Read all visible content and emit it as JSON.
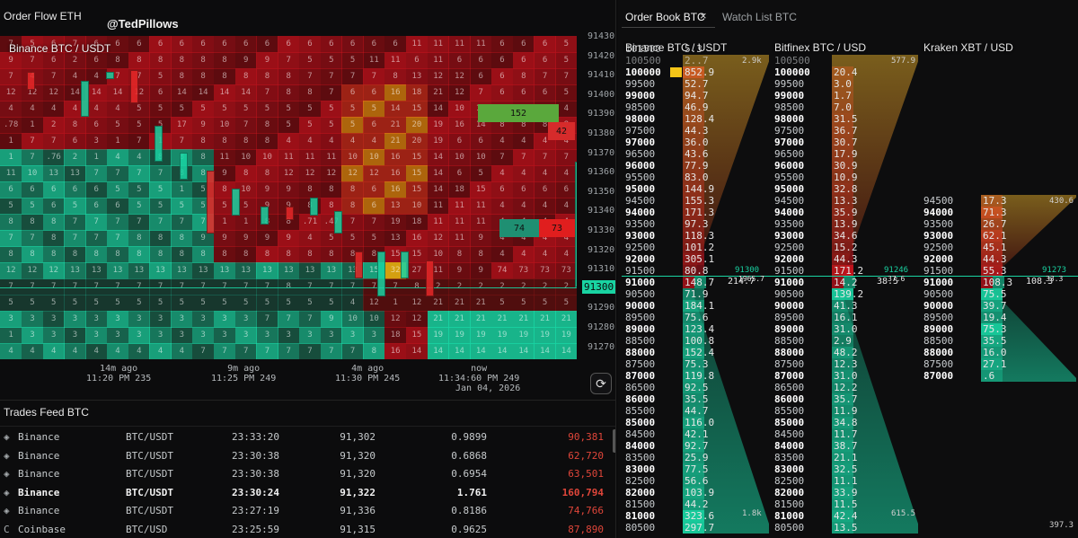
{
  "order_flow": {
    "title": "Order Flow ETH",
    "watermark": "@TedPillows",
    "pair_label": "Binance BTC / USDT",
    "price_axis": [
      "91430",
      "91420",
      "91410",
      "91400",
      "91390",
      "91380",
      "91370",
      "91360",
      "91350",
      "91340",
      "91330",
      "91320",
      "91310",
      "91300",
      "91290",
      "91280",
      "91270"
    ],
    "current_price": "91300",
    "time_labels": [
      {
        "rel": "14m ago",
        "abs": "11:20 PM 235"
      },
      {
        "rel": "9m ago",
        "abs": "11:25 PM 249"
      },
      {
        "rel": "4m ago",
        "abs": "11:30 PM 245"
      },
      {
        "rel": "now",
        "abs": "11:34:60 PM 249",
        "date": "Jan 04, 2026"
      }
    ],
    "heat_rows": [
      [
        "7",
        "5",
        "6",
        "7",
        "6",
        "6",
        "6",
        "6",
        "6",
        "6",
        "6",
        "6",
        "6",
        "6",
        "6",
        "6",
        "6",
        "6",
        "6",
        "11",
        "11",
        "11",
        "11",
        "6",
        "6",
        "6",
        "5"
      ],
      [
        "9",
        "7",
        "6",
        "2",
        "6",
        "8",
        "8",
        "8",
        "8",
        "8",
        "8",
        "9",
        "9",
        "7",
        "5",
        "5",
        "5",
        "11",
        "11",
        "6",
        "11",
        "6",
        "6",
        "6",
        "6",
        "6",
        "5"
      ],
      [
        "7",
        "4",
        "7",
        "4",
        "4",
        "7",
        "7",
        "5",
        "8",
        "8",
        "8",
        "8",
        "8",
        "8",
        "7",
        "7",
        "7",
        "7",
        "8",
        "13",
        "12",
        "12",
        "6",
        "6",
        "8",
        "7",
        "7"
      ],
      [
        "12",
        "12",
        "12",
        "14",
        "14",
        "14",
        "12",
        "6",
        "14",
        "14",
        "14",
        "14",
        "7",
        "8",
        "8",
        "7",
        "6",
        "6",
        "16",
        "18",
        "21",
        "12",
        "7",
        "6",
        "6",
        "6",
        "5"
      ],
      [
        "4",
        "4",
        "4",
        "4",
        "4",
        "4",
        "5",
        "5",
        "5",
        "5",
        "5",
        "5",
        "5",
        "5",
        "5",
        "5",
        "5",
        "5",
        "14",
        "15",
        "14",
        "10",
        "15",
        "4",
        "4",
        "4",
        "4"
      ],
      [
        ".78",
        "1",
        "2",
        "8",
        "6",
        "5",
        "5",
        "5",
        "17",
        "9",
        "10",
        "7",
        "8",
        "5",
        "5",
        "5",
        "5",
        "6",
        "21",
        "20",
        "19",
        "16",
        "14",
        "8",
        "8",
        "8",
        "8"
      ],
      [
        "1",
        "7",
        "7",
        "6",
        "3",
        "1",
        "7",
        "1",
        "7",
        "8",
        "8",
        "8",
        "8",
        "4",
        "4",
        "4",
        "4",
        "4",
        "21",
        "20",
        "19",
        "6",
        "6",
        "4",
        "4",
        "4",
        "4"
      ],
      [
        "1",
        "7",
        ".76",
        "2",
        "1",
        "4",
        "4",
        "8",
        "8",
        "8",
        "11",
        "10",
        "10",
        "11",
        "11",
        "11",
        "10",
        "10",
        "16",
        "15",
        "14",
        "10",
        "10",
        "7",
        "7",
        "7",
        "7"
      ],
      [
        "11",
        "10",
        "13",
        "13",
        "7",
        "7",
        "7",
        "7",
        "8",
        "8",
        "9",
        "8",
        "8",
        "12",
        "12",
        "12",
        "12",
        "12",
        "16",
        "15",
        "14",
        "6",
        "5",
        "4",
        "4",
        "4",
        "4"
      ],
      [
        "6",
        "6",
        "6",
        "6",
        "6",
        "5",
        "5",
        "5",
        "1",
        "5",
        "8",
        "10",
        "9",
        "9",
        "8",
        "8",
        "8",
        "6",
        "16",
        "15",
        "14",
        "18",
        "15",
        "6",
        "6",
        "6",
        "6"
      ],
      [
        "5",
        "5",
        "6",
        "5",
        "6",
        "6",
        "5",
        "5",
        "5",
        "5",
        "5",
        "5",
        "9",
        "9",
        "8",
        "8",
        "8",
        "6",
        "13",
        "10",
        "11",
        "11",
        "11",
        "4",
        "4",
        "4",
        "4"
      ],
      [
        "8",
        "8",
        "8",
        "7",
        "7",
        "7",
        "7",
        "7",
        "7",
        "7",
        "1",
        "1",
        "8",
        "8",
        ".71",
        ".47",
        "7",
        "7",
        "19",
        "18",
        "11",
        "11",
        "11",
        "4",
        "4",
        "4",
        "4"
      ],
      [
        "7",
        "7",
        "8",
        "7",
        "7",
        "7",
        "8",
        "8",
        "8",
        "9",
        "9",
        "9",
        "9",
        "9",
        "4",
        "5",
        "5",
        "5",
        "13",
        "16",
        "12",
        "11",
        "9",
        "4",
        "4",
        "4",
        "4"
      ],
      [
        "8",
        "8",
        "8",
        "8",
        "8",
        "8",
        "8",
        "8",
        "8",
        "8",
        "8",
        "8",
        "8",
        "8",
        "8",
        "8",
        "8",
        "8",
        "15",
        "15",
        "10",
        "8",
        "8",
        "4",
        "4",
        "4",
        "4"
      ],
      [
        "12",
        "12",
        "12",
        "13",
        "13",
        "13",
        "13",
        "13",
        "13",
        "13",
        "13",
        "13",
        "13",
        "13",
        "13",
        "13",
        "13",
        "15",
        "32",
        "27",
        "11",
        "9",
        "9",
        "74",
        "73",
        "73",
        "73"
      ],
      [
        "7",
        "7",
        "7",
        "7",
        "7",
        "7",
        "7",
        "7",
        "7",
        "7",
        "7",
        "7",
        "7",
        "8",
        "7",
        "7",
        "7",
        "7",
        "7",
        "8",
        "2",
        "2",
        "2",
        "2",
        "2",
        "2",
        "2"
      ],
      [
        "5",
        "5",
        "5",
        "5",
        "5",
        "5",
        "5",
        "5",
        "5",
        "5",
        "5",
        "5",
        "5",
        "5",
        "5",
        "5",
        "4",
        "12",
        "1",
        "12",
        "21",
        "21",
        "21",
        "5",
        "5",
        "5",
        "5"
      ],
      [
        "3",
        "3",
        "3",
        "3",
        "3",
        "3",
        "3",
        "3",
        "3",
        "3",
        "3",
        "3",
        "7",
        "7",
        "7",
        "9",
        "10",
        "10",
        "12",
        "12",
        "21",
        "21",
        "21",
        "21",
        "21",
        "21",
        "21"
      ],
      [
        "1",
        "3",
        "3",
        "3",
        "3",
        "3",
        "3",
        "3",
        "3",
        "3",
        "3",
        "3",
        "3",
        "3",
        "3",
        "3",
        "3",
        "3",
        "18",
        "15",
        "19",
        "19",
        "19",
        "19",
        "19",
        "19",
        "19"
      ],
      [
        "4",
        "4",
        "4",
        "4",
        "4",
        "4",
        "4",
        "4",
        "4",
        "7",
        "7",
        "7",
        "7",
        "7",
        "7",
        "7",
        "7",
        "8",
        "16",
        "14",
        "14",
        "14",
        "14",
        "14",
        "14",
        "14",
        "14"
      ]
    ],
    "big_bids": [
      {
        "label": "152"
      },
      {
        "label": "74"
      },
      {
        "label": "42"
      },
      {
        "label": "73"
      }
    ]
  },
  "trades_feed": {
    "title": "Trades Feed BTC",
    "rows": [
      {
        "exchange": "Binance",
        "pair": "BTC/USDT",
        "time": "23:33:20",
        "price": "91,302",
        "size": "0.9899",
        "value": "90,381",
        "bold": false
      },
      {
        "exchange": "Binance",
        "pair": "BTC/USDT",
        "time": "23:30:38",
        "price": "91,320",
        "size": "0.6868",
        "value": "62,720",
        "bold": false
      },
      {
        "exchange": "Binance",
        "pair": "BTC/USDT",
        "time": "23:30:38",
        "price": "91,320",
        "size": "0.6954",
        "value": "63,501",
        "bold": false
      },
      {
        "exchange": "Binance",
        "pair": "BTC/USDT",
        "time": "23:30:24",
        "price": "91,322",
        "size": "1.761",
        "value": "160,794",
        "bold": true
      },
      {
        "exchange": "Binance",
        "pair": "BTC/USDT",
        "time": "23:27:19",
        "price": "91,336",
        "size": "0.8186",
        "value": "74,766",
        "bold": false
      },
      {
        "exchange": "Coinbase",
        "pair": "BTC/USD",
        "time": "23:25:59",
        "price": "91,315",
        "size": "0.9625",
        "value": "87,890",
        "bold": false
      }
    ]
  },
  "order_book": {
    "tab_active": "Order Book BTC",
    "tab_close": "×",
    "tab_other": "Watch List BTC",
    "books": [
      {
        "title": "Binance BTC / USDT",
        "top_row": {
          "price": "101500",
          "qty": "5.3"
        },
        "top_total": "2.9k",
        "asks": [
          [
            "100000",
            "852.9"
          ],
          [
            "99500",
            "52.7"
          ],
          [
            "99000",
            "94.7"
          ],
          [
            "98500",
            "46.9"
          ],
          [
            "98000",
            "128.4"
          ],
          [
            "97500",
            "44.3"
          ],
          [
            "97000",
            "36.0"
          ],
          [
            "96500",
            "43.6"
          ],
          [
            "96000",
            "77.9"
          ],
          [
            "95500",
            "83.0"
          ],
          [
            "95000",
            "144.9"
          ],
          [
            "94500",
            "155.3"
          ],
          [
            "94000",
            "171.3"
          ],
          [
            "93500",
            "97.3"
          ],
          [
            "93000",
            "118.3"
          ],
          [
            "92500",
            "101.2"
          ],
          [
            "92000",
            "305.1"
          ],
          [
            "91500",
            "80.8"
          ]
        ],
        "partial_top": [
          "100500",
          "2..7"
        ],
        "mid": {
          "row_price": "91000",
          "row_qty": "148.7",
          "spread": "214.7",
          "spread2": "1965.7",
          "line_price": "91300"
        },
        "bids": [
          [
            "90500",
            "71.9"
          ],
          [
            "90000",
            "184.1"
          ],
          [
            "89500",
            "75.6"
          ],
          [
            "89000",
            "123.4"
          ],
          [
            "88500",
            "100.8"
          ],
          [
            "88000",
            "152.4"
          ],
          [
            "87500",
            "75.3"
          ],
          [
            "87000",
            "119.8"
          ],
          [
            "86500",
            "92.5"
          ],
          [
            "86000",
            "35.5"
          ],
          [
            "85500",
            "44.7"
          ],
          [
            "85000",
            "116.0"
          ],
          [
            "84500",
            "42.1"
          ],
          [
            "84000",
            "92.7"
          ],
          [
            "83500",
            "25.9"
          ],
          [
            "83000",
            "77.5"
          ],
          [
            "82500",
            "56.6"
          ],
          [
            "82000",
            "103.9"
          ],
          [
            "81500",
            "44.2"
          ],
          [
            "81000",
            "323.6"
          ],
          [
            "80500",
            "297.7"
          ]
        ],
        "bottom_total": "1.8k"
      },
      {
        "title": "Bitfinex BTC / USD",
        "top_total": "577.9",
        "partial_top": [
          "100500",
          ""
        ],
        "asks": [
          [
            "100000",
            "20.4"
          ],
          [
            "99500",
            "3.0"
          ],
          [
            "99000",
            "1.7"
          ],
          [
            "98500",
            "7.0"
          ],
          [
            "98000",
            "31.5"
          ],
          [
            "97500",
            "36.7"
          ],
          [
            "97000",
            "30.7"
          ],
          [
            "96500",
            "17.9"
          ],
          [
            "96000",
            "30.9"
          ],
          [
            "95500",
            "10.9"
          ],
          [
            "95000",
            "32.8"
          ],
          [
            "94500",
            "13.3"
          ],
          [
            "94000",
            "35.9"
          ],
          [
            "93500",
            "13.9"
          ],
          [
            "93000",
            "34.6"
          ],
          [
            "92500",
            "15.2"
          ],
          [
            "92000",
            "44.3"
          ],
          [
            "91500",
            "171.2"
          ]
        ],
        "mid": {
          "row_price": "91000",
          "row_qty": "14.2",
          "spread": "38.5",
          "spread2": "37.6",
          "line_price": "91246"
        },
        "bids": [
          [
            "90500",
            "139.2"
          ],
          [
            "90000",
            "41.3"
          ],
          [
            "89500",
            "16.1"
          ],
          [
            "89000",
            "31.0"
          ],
          [
            "88500",
            "2.9"
          ],
          [
            "88000",
            "48.2"
          ],
          [
            "87500",
            "12.3"
          ],
          [
            "87000",
            "31.0"
          ],
          [
            "86500",
            "12.2"
          ],
          [
            "86000",
            "35.7"
          ],
          [
            "85500",
            "11.9"
          ],
          [
            "85000",
            "34.8"
          ],
          [
            "84500",
            "11.7"
          ],
          [
            "84000",
            "38.7"
          ],
          [
            "83500",
            "21.1"
          ],
          [
            "83000",
            "32.5"
          ],
          [
            "82500",
            "11.1"
          ],
          [
            "82000",
            "33.9"
          ],
          [
            "81500",
            "11.5"
          ],
          [
            "81000",
            "42.4"
          ],
          [
            "80500",
            "13.5"
          ]
        ],
        "bottom_total": "615.5"
      },
      {
        "title": "Kraken XBT / USD",
        "top_total": "430.6",
        "asks": [
          [
            "94500",
            "17.3"
          ],
          [
            "94000",
            "71.3"
          ],
          [
            "93500",
            "26.7"
          ],
          [
            "93000",
            "62.1"
          ],
          [
            "92500",
            "45.1"
          ],
          [
            "92000",
            "44.3"
          ],
          [
            "91500",
            "55.3"
          ]
        ],
        "mid": {
          "row_price": "91000",
          "row_qty": "108.3",
          "spread": "108.3",
          "spread2": "33.3",
          "line_price": "91273"
        },
        "bids": [
          [
            "90500",
            "75.5"
          ],
          [
            "90000",
            "39.7"
          ],
          [
            "89500",
            "19.4"
          ],
          [
            "89000",
            "75.3"
          ],
          [
            "88500",
            "35.5"
          ],
          [
            "88000",
            "16.0"
          ],
          [
            "87500",
            "27.1"
          ],
          [
            "87000",
            ".6"
          ]
        ],
        "bottom_total": "397.3"
      }
    ]
  },
  "colors": {
    "bid": "#19d3a2",
    "ask": "#b3121b",
    "hot": "#e0860f",
    "mark": "#f5c518"
  }
}
